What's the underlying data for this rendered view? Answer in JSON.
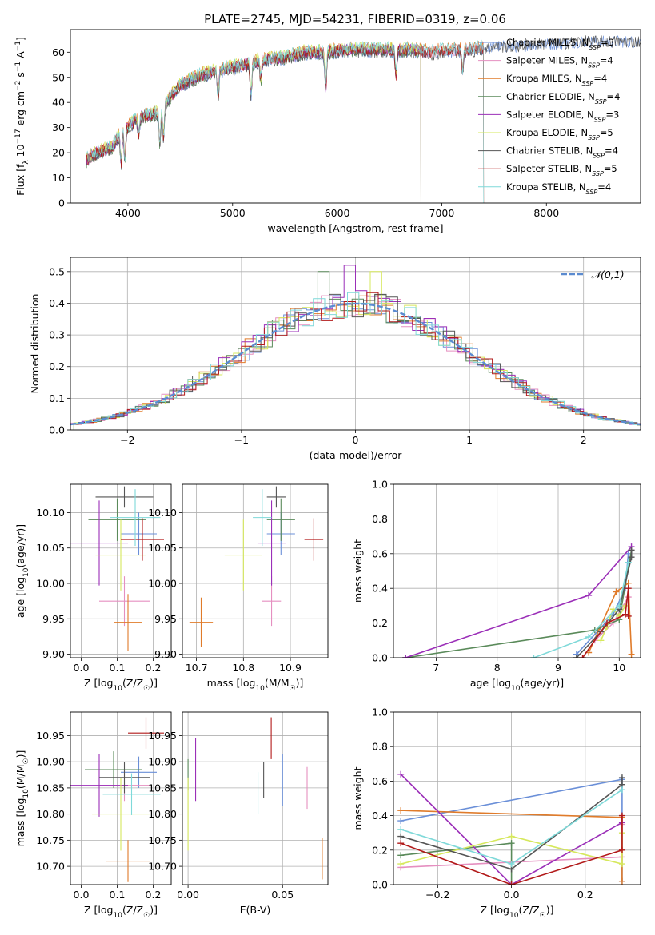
{
  "figure_title": "PLATE=2745, MJD=54231, FIBERID=0319, z=0.06",
  "colors": {
    "Chabrier MILES": "#6a8fd8",
    "Salpeter MILES": "#e58fc0",
    "Kroupa MILES": "#e07b2a",
    "Chabrier ELODIE": "#5a8a5a",
    "Salpeter ELODIE": "#9b2fb8",
    "Kroupa ELODIE": "#d6e85c",
    "Chabrier STELIB": "#555555",
    "Salpeter STELIB": "#b21a1a",
    "Kroupa STELIB": "#7fd9d9"
  },
  "chart_data": [
    {
      "id": "spectrum",
      "type": "line",
      "title": "PLATE=2745, MJD=54231, FIBERID=0319, z=0.06",
      "xlabel": "wavelength [Angstrom, rest frame]",
      "ylabel": "Flux [f_λ 10^-17 erg cm^-2 s^-1 A^-1]",
      "xlim": [
        3450,
        8900
      ],
      "ylim": [
        0,
        69
      ],
      "xticks": [
        4000,
        5000,
        6000,
        7000,
        8000
      ],
      "yticks": [
        0,
        10,
        20,
        30,
        40,
        50,
        60
      ],
      "grid": false,
      "legend_position": "right",
      "legend": [
        {
          "name": "Chabrier MILES",
          "nssp": "3"
        },
        {
          "name": "Salpeter MILES",
          "nssp": "4"
        },
        {
          "name": "Kroupa MILES",
          "nssp": "4"
        },
        {
          "name": "Chabrier ELODIE",
          "nssp": "4"
        },
        {
          "name": "Salpeter ELODIE",
          "nssp": "3"
        },
        {
          "name": "Kroupa ELODIE",
          "nssp": "5"
        },
        {
          "name": "Chabrier STELIB",
          "nssp": "4"
        },
        {
          "name": "Salpeter STELIB",
          "nssp": "5"
        },
        {
          "name": "Kroupa STELIB",
          "nssp": "4"
        }
      ],
      "continuum": {
        "x": [
          3600,
          3700,
          3850,
          3950,
          4000,
          4100,
          4200,
          4300,
          4400,
          4500,
          4700,
          4900,
          5100,
          5300,
          5500,
          5700,
          5900,
          6100,
          6300,
          6500,
          6700,
          6900,
          7100,
          7300,
          7500,
          7700,
          7900,
          8100,
          8300,
          8500,
          8700,
          8900
        ],
        "y": [
          17,
          20,
          22,
          30,
          30,
          34,
          35,
          36,
          42,
          47,
          51,
          53,
          55,
          57,
          58,
          60,
          60,
          61,
          61,
          61,
          61,
          60,
          61,
          61,
          63,
          63,
          64,
          64,
          65,
          65,
          65,
          65
        ]
      },
      "dips": [
        {
          "x": 3935,
          "y": 16
        },
        {
          "x": 3970,
          "y": 18
        },
        {
          "x": 4102,
          "y": 27
        },
        {
          "x": 4305,
          "y": 24
        },
        {
          "x": 4340,
          "y": 27
        },
        {
          "x": 4861,
          "y": 42
        },
        {
          "x": 5175,
          "y": 43
        },
        {
          "x": 5270,
          "y": 49
        },
        {
          "x": 5890,
          "y": 45
        },
        {
          "x": 6563,
          "y": 51
        },
        {
          "x": 7200,
          "y": 52
        }
      ],
      "model_end_x": {
        "Chabrier MILES": 8900,
        "Salpeter MILES": 7400,
        "Kroupa MILES": 7400,
        "Chabrier ELODIE": 6800,
        "Salpeter ELODIE": 6800,
        "Kroupa ELODIE": 6800,
        "Chabrier STELIB": 8900,
        "Salpeter STELIB": 7400,
        "Kroupa STELIB": 7400
      }
    },
    {
      "id": "residuals",
      "type": "histogram",
      "xlabel": "(data-model)/error",
      "ylabel": "Normed distribution",
      "xlim": [
        -2.5,
        2.5
      ],
      "ylim": [
        0,
        0.545
      ],
      "xticks": [
        -2,
        -1,
        0,
        1,
        2
      ],
      "yticks": [
        0.0,
        0.1,
        0.2,
        0.3,
        0.4,
        0.5
      ],
      "grid": true,
      "legend_position": "top-right",
      "reference_curve": {
        "name": "𝒩(0,1)",
        "mean": 0,
        "sigma": 1
      },
      "bin_width": 0.1,
      "bin_range": [
        -2.5,
        2.5
      ],
      "peak_excursions": [
        {
          "series": "Salpeter ELODIE",
          "x": 0.0,
          "y": 0.52
        },
        {
          "series": "Chabrier ELODIE",
          "x": -0.3,
          "y": 0.5
        },
        {
          "series": "Kroupa ELODIE",
          "x": 0.2,
          "y": 0.5
        }
      ]
    },
    {
      "id": "age-vs-Z",
      "type": "errorbar",
      "xlabel": "Z [log10(Z/Z☉)]",
      "ylabel": "age  [log10(age/yr)]",
      "xlim": [
        -0.03,
        0.25
      ],
      "ylim": [
        9.895,
        10.14
      ],
      "xticks": [
        0.0,
        0.1,
        0.2
      ],
      "yticks": [
        9.9,
        9.95,
        10.0,
        10.05,
        10.1
      ],
      "grid": true,
      "points": [
        {
          "series": "Chabrier MILES",
          "x": 0.16,
          "xerr": 0.05,
          "y": 10.07,
          "yerr": 0.03
        },
        {
          "series": "Salpeter MILES",
          "x": 0.12,
          "xerr": 0.07,
          "y": 9.975,
          "yerr": 0.035
        },
        {
          "series": "Kroupa MILES",
          "x": 0.13,
          "xerr": 0.04,
          "y": 9.945,
          "yerr": 0.04
        },
        {
          "series": "Chabrier ELODIE",
          "x": 0.1,
          "xerr": 0.08,
          "y": 10.09,
          "yerr": 0.03
        },
        {
          "series": "Salpeter ELODIE",
          "x": 0.05,
          "xerr": 0.08,
          "y": 10.057,
          "yerr": 0.06
        },
        {
          "series": "Kroupa ELODIE",
          "x": 0.11,
          "xerr": 0.07,
          "y": 10.04,
          "yerr": 0.05
        },
        {
          "series": "Chabrier STELIB",
          "x": 0.12,
          "xerr": 0.08,
          "y": 10.122,
          "yerr": 0.015
        },
        {
          "series": "Salpeter STELIB",
          "x": 0.17,
          "xerr": 0.06,
          "y": 10.062,
          "yerr": 0.03
        },
        {
          "series": "Kroupa STELIB",
          "x": 0.15,
          "xerr": 0.07,
          "y": 10.093,
          "yerr": 0.04
        }
      ]
    },
    {
      "id": "age-vs-mass",
      "type": "errorbar",
      "xlabel": "mass [log10(M/M☉)]",
      "ylabel": "",
      "xlim": [
        10.67,
        10.98
      ],
      "ylim": [
        9.895,
        10.14
      ],
      "xticks": [
        10.7,
        10.8,
        10.9
      ],
      "yticks": [
        9.9,
        9.95,
        10.0,
        10.05,
        10.1
      ],
      "grid": true,
      "points": [
        {
          "series": "Chabrier MILES",
          "x": 10.88,
          "xerr": 0.03,
          "y": 10.07,
          "yerr": 0.03
        },
        {
          "series": "Salpeter MILES",
          "x": 10.86,
          "xerr": 0.02,
          "y": 9.975,
          "yerr": 0.035
        },
        {
          "series": "Kroupa MILES",
          "x": 10.71,
          "xerr": 0.025,
          "y": 9.945,
          "yerr": 0.035
        },
        {
          "series": "Chabrier ELODIE",
          "x": 10.88,
          "xerr": 0.03,
          "y": 10.09,
          "yerr": 0.03
        },
        {
          "series": "Salpeter ELODIE",
          "x": 10.86,
          "xerr": 0.03,
          "y": 10.057,
          "yerr": 0.06
        },
        {
          "series": "Kroupa ELODIE",
          "x": 10.8,
          "xerr": 0.04,
          "y": 10.04,
          "yerr": 0.05
        },
        {
          "series": "Chabrier STELIB",
          "x": 10.87,
          "xerr": 0.02,
          "y": 10.122,
          "yerr": 0.015
        },
        {
          "series": "Salpeter STELIB",
          "x": 10.95,
          "xerr": 0.02,
          "y": 10.062,
          "yerr": 0.03
        },
        {
          "series": "Kroupa STELIB",
          "x": 10.84,
          "xerr": 0.02,
          "y": 10.093,
          "yerr": 0.04
        }
      ]
    },
    {
      "id": "massweight-vs-age",
      "type": "line",
      "xlabel": "age  [log10(age/yr)]",
      "ylabel": "mass weight",
      "xlim": [
        6.3,
        10.35
      ],
      "ylim": [
        0,
        1.0
      ],
      "xticks": [
        7,
        8,
        9,
        10
      ],
      "yticks": [
        0.0,
        0.2,
        0.4,
        0.6,
        0.8,
        1.0
      ],
      "grid": true,
      "series": [
        {
          "name": "Chabrier MILES",
          "x": [
            9.3,
            9.9,
            10.1,
            10.15
          ],
          "y": [
            0.02,
            0.25,
            0.4,
            0.6
          ]
        },
        {
          "name": "Salpeter MILES",
          "x": [
            9.6,
            9.9,
            10.15
          ],
          "y": [
            0.1,
            0.2,
            0.35
          ]
        },
        {
          "name": "Kroupa MILES",
          "x": [
            9.5,
            9.95,
            10.15,
            10.2
          ],
          "y": [
            0.03,
            0.38,
            0.43,
            0.02
          ]
        },
        {
          "name": "Chabrier ELODIE",
          "x": [
            6.5,
            9.6,
            10.0,
            10.2
          ],
          "y": [
            0.0,
            0.16,
            0.22,
            0.62
          ]
        },
        {
          "name": "Salpeter ELODIE",
          "x": [
            6.5,
            9.5,
            10.2
          ],
          "y": [
            0.0,
            0.36,
            0.64
          ]
        },
        {
          "name": "Kroupa ELODIE",
          "x": [
            9.7,
            9.8,
            9.9,
            10.0,
            10.1
          ],
          "y": [
            0.1,
            0.18,
            0.28,
            0.24,
            0.3
          ]
        },
        {
          "name": "Chabrier STELIB",
          "x": [
            9.3,
            9.7,
            10.0,
            10.2,
            10.2
          ],
          "y": [
            0.0,
            0.15,
            0.28,
            0.58,
            0.62
          ]
        },
        {
          "name": "Salpeter STELIB",
          "x": [
            9.4,
            9.8,
            10.1,
            10.15,
            10.15
          ],
          "y": [
            0.0,
            0.2,
            0.25,
            0.4,
            0.24
          ]
        },
        {
          "name": "Kroupa STELIB",
          "x": [
            8.6,
            9.5,
            10.0,
            10.15
          ],
          "y": [
            0.0,
            0.12,
            0.3,
            0.55
          ]
        }
      ]
    },
    {
      "id": "mass-vs-Z",
      "type": "errorbar",
      "xlabel": "Z [log10(Z/Z☉)]",
      "ylabel": "mass [log10(M/M☉)]",
      "xlim": [
        -0.03,
        0.25
      ],
      "ylim": [
        10.665,
        10.995
      ],
      "xticks": [
        0.0,
        0.1,
        0.2
      ],
      "yticks": [
        10.7,
        10.75,
        10.8,
        10.85,
        10.9,
        10.95
      ],
      "grid": true,
      "points": [
        {
          "series": "Chabrier MILES",
          "x": 0.16,
          "xerr": 0.05,
          "y": 10.88,
          "yerr": 0.03
        },
        {
          "series": "Salpeter MILES",
          "x": 0.12,
          "xerr": 0.07,
          "y": 10.855,
          "yerr": 0.03
        },
        {
          "series": "Kroupa MILES",
          "x": 0.13,
          "xerr": 0.06,
          "y": 10.71,
          "yerr": 0.04
        },
        {
          "series": "Chabrier ELODIE",
          "x": 0.09,
          "xerr": 0.08,
          "y": 10.885,
          "yerr": 0.035
        },
        {
          "series": "Salpeter ELODIE",
          "x": 0.05,
          "xerr": 0.08,
          "y": 10.855,
          "yerr": 0.06
        },
        {
          "series": "Kroupa ELODIE",
          "x": 0.11,
          "xerr": 0.08,
          "y": 10.8,
          "yerr": 0.07
        },
        {
          "series": "Chabrier STELIB",
          "x": 0.12,
          "xerr": 0.07,
          "y": 10.87,
          "yerr": 0.03
        },
        {
          "series": "Salpeter STELIB",
          "x": 0.18,
          "xerr": 0.05,
          "y": 10.955,
          "yerr": 0.03
        },
        {
          "series": "Kroupa STELIB",
          "x": 0.14,
          "xerr": 0.08,
          "y": 10.838,
          "yerr": 0.04
        }
      ]
    },
    {
      "id": "mass-vs-ebv",
      "type": "errorbar",
      "xlabel": "E(B-V)",
      "ylabel": "",
      "xlim": [
        -0.003,
        0.074
      ],
      "ylim": [
        10.665,
        10.995
      ],
      "xticks": [
        0.0,
        0.05
      ],
      "yticks": [
        10.7,
        10.75,
        10.8,
        10.85,
        10.9,
        10.95
      ],
      "grid": true,
      "points": [
        {
          "series": "Chabrier MILES",
          "x": 0.05,
          "xerr": 0.0,
          "y": 10.865,
          "yerr": 0.05
        },
        {
          "series": "Salpeter MILES",
          "x": 0.063,
          "xerr": 0.0,
          "y": 10.85,
          "yerr": 0.04
        },
        {
          "series": "Kroupa MILES",
          "x": 0.071,
          "xerr": 0.0,
          "y": 10.715,
          "yerr": 0.04
        },
        {
          "series": "Chabrier ELODIE",
          "x": 0.0,
          "xerr": 0.0,
          "y": 10.875,
          "yerr": 0.03
        },
        {
          "series": "Salpeter ELODIE",
          "x": 0.004,
          "xerr": 0.0,
          "y": 10.885,
          "yerr": 0.06
        },
        {
          "series": "Kroupa ELODIE",
          "x": 0.0,
          "xerr": 0.0,
          "y": 10.8,
          "yerr": 0.07
        },
        {
          "series": "Chabrier STELIB",
          "x": 0.04,
          "xerr": 0.0,
          "y": 10.865,
          "yerr": 0.035
        },
        {
          "series": "Salpeter STELIB",
          "x": 0.044,
          "xerr": 0.0,
          "y": 10.945,
          "yerr": 0.04
        },
        {
          "series": "Kroupa STELIB",
          "x": 0.037,
          "xerr": 0.0,
          "y": 10.84,
          "yerr": 0.04
        }
      ]
    },
    {
      "id": "massweight-vs-Z",
      "type": "line",
      "xlabel": "Z [log10(Z/Z☉)]",
      "ylabel": "mass weight",
      "xlim": [
        -0.32,
        0.35
      ],
      "ylim": [
        0,
        1.0
      ],
      "xticks": [
        -0.2,
        0.0,
        0.2
      ],
      "yticks": [
        0.0,
        0.2,
        0.4,
        0.6,
        0.8,
        1.0
      ],
      "grid": true,
      "series": [
        {
          "name": "Chabrier MILES",
          "x": [
            -0.3,
            0.3,
            0.3
          ],
          "y": [
            0.37,
            0.61,
            0.02
          ]
        },
        {
          "name": "Salpeter MILES",
          "x": [
            -0.3,
            0.3,
            0.3
          ],
          "y": [
            0.1,
            0.16,
            0.35
          ]
        },
        {
          "name": "Kroupa MILES",
          "x": [
            -0.3,
            0.3,
            0.3
          ],
          "y": [
            0.43,
            0.39,
            0.02
          ]
        },
        {
          "name": "Chabrier ELODIE",
          "x": [
            -0.3,
            0.0,
            0.0
          ],
          "y": [
            0.17,
            0.24,
            0.0
          ]
        },
        {
          "name": "Salpeter ELODIE",
          "x": [
            -0.3,
            0.0,
            0.3
          ],
          "y": [
            0.64,
            0.0,
            0.36
          ]
        },
        {
          "name": "Kroupa ELODIE",
          "x": [
            -0.3,
            0.0,
            0.3,
            0.3
          ],
          "y": [
            0.12,
            0.28,
            0.12,
            0.3
          ]
        },
        {
          "name": "Chabrier STELIB",
          "x": [
            -0.3,
            0.0,
            0.3,
            0.3
          ],
          "y": [
            0.28,
            0.09,
            0.58,
            0.62
          ]
        },
        {
          "name": "Salpeter STELIB",
          "x": [
            -0.3,
            0.0,
            0.3,
            0.3
          ],
          "y": [
            0.24,
            0.0,
            0.2,
            0.4
          ]
        },
        {
          "name": "Kroupa STELIB",
          "x": [
            -0.3,
            0.0,
            0.3
          ],
          "y": [
            0.32,
            0.12,
            0.55
          ]
        }
      ]
    }
  ]
}
